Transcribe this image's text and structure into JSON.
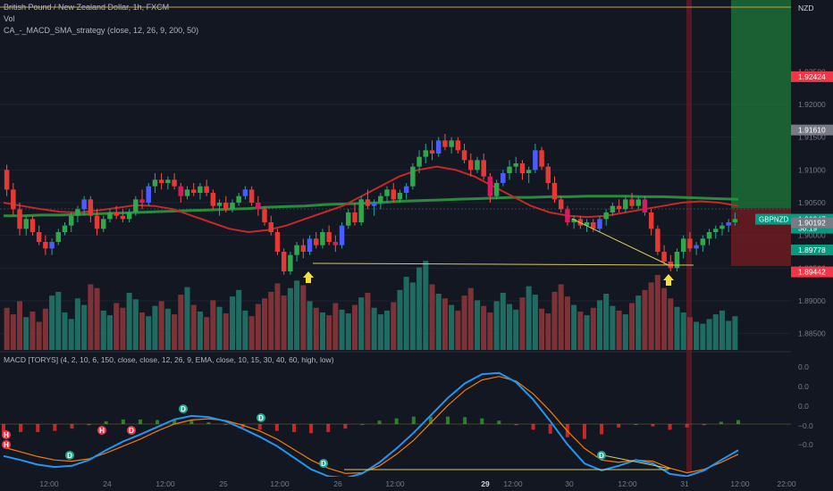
{
  "header": {
    "symbol_title": "British Pound / New Zealand Dollar, 1h, FXCM",
    "vol_label": "Vol",
    "strategy_label": "CA_-_MACD_SMA_strategy (close, 12, 26, 9, 200, 50)"
  },
  "macd_legend": "MACD [TORYS] (4, 2, 10, 6, 150, close, close, 12, 26, 9, EMA, close, 10, 15, 30, 40, 60, high, low)",
  "price_axis": {
    "currency": "NZD",
    "ticks": [
      "1.92500",
      "1.92000",
      "1.91500",
      "1.91000",
      "1.90500",
      "1.90000",
      "1.89500",
      "1.89000",
      "1.88500"
    ],
    "badges": [
      {
        "value": "1.92424",
        "color": "#f23645"
      },
      {
        "value": "1.91610",
        "color": "#787b86"
      },
      {
        "value": "1.90247",
        "color": "#089981"
      },
      {
        "value": "38:19",
        "color": "#089981"
      },
      {
        "value": "1.90192",
        "color": "#787b86"
      },
      {
        "value": "1.89778",
        "color": "#089981"
      },
      {
        "value": "1.89442",
        "color": "#f23645"
      }
    ],
    "symbol_badge": "GBPNZD"
  },
  "macd_axis": {
    "ticks": [
      "0.0",
      "0.0",
      "0.0",
      "−0.0",
      "−0.0"
    ]
  },
  "time_axis": {
    "labels": [
      "12:00",
      "24",
      "12:00",
      "25",
      "12:00",
      "26",
      "12:00",
      "29",
      "12:00",
      "30",
      "12:00",
      "31",
      "12:00",
      "22:00"
    ]
  },
  "signals": [
    {
      "text": "H",
      "color": "#f23645"
    },
    {
      "text": "H",
      "color": "#f23645"
    },
    {
      "text": "H",
      "color": "#f23645"
    },
    {
      "text": "D",
      "color": "#f23645"
    },
    {
      "text": "D",
      "color": "#22ab94"
    },
    {
      "text": "D",
      "color": "#22ab94"
    },
    {
      "text": "D",
      "color": "#22ab94"
    },
    {
      "text": "D",
      "color": "#22ab94"
    },
    {
      "text": "D",
      "color": "#22ab94"
    }
  ],
  "chart_data": {
    "type": "candlestick",
    "ylim": [
      1.8825,
      1.9305
    ],
    "candles": [
      [
        1.91,
        1.9108,
        1.906,
        1.907
      ],
      [
        1.907,
        1.908,
        1.903,
        1.904
      ],
      [
        1.904,
        1.905,
        1.9,
        1.901
      ],
      [
        1.901,
        1.903,
        1.9,
        1.9025
      ],
      [
        1.9025,
        1.903,
        1.9,
        1.9005
      ],
      [
        1.9005,
        1.9015,
        1.8985,
        1.899
      ],
      [
        1.899,
        1.9,
        1.897,
        1.898
      ],
      [
        1.898,
        1.8995,
        1.897,
        1.899
      ],
      [
        1.899,
        1.901,
        1.8985,
        1.9005
      ],
      [
        1.9005,
        1.902,
        1.9,
        1.9015
      ],
      [
        1.9015,
        1.9035,
        1.9005,
        1.903
      ],
      [
        1.903,
        1.9045,
        1.902,
        1.904
      ],
      [
        1.904,
        1.906,
        1.903,
        1.9055
      ],
      [
        1.9055,
        1.906,
        1.902,
        1.903
      ],
      [
        1.903,
        1.904,
        1.9,
        1.901
      ],
      [
        1.901,
        1.903,
        1.9005,
        1.9025
      ],
      [
        1.9025,
        1.904,
        1.902,
        1.9035
      ],
      [
        1.9035,
        1.9045,
        1.9025,
        1.903
      ],
      [
        1.903,
        1.904,
        1.902,
        1.9025
      ],
      [
        1.9025,
        1.904,
        1.902,
        1.9035
      ],
      [
        1.9035,
        1.906,
        1.903,
        1.9055
      ],
      [
        1.9055,
        1.907,
        1.904,
        1.905
      ],
      [
        1.905,
        1.908,
        1.9045,
        1.9075
      ],
      [
        1.9075,
        1.9095,
        1.9065,
        1.9085
      ],
      [
        1.9085,
        1.9095,
        1.907,
        1.908
      ],
      [
        1.908,
        1.909,
        1.907,
        1.9085
      ],
      [
        1.9085,
        1.9095,
        1.907,
        1.9075
      ],
      [
        1.9075,
        1.908,
        1.905,
        1.906
      ],
      [
        1.906,
        1.9075,
        1.9055,
        1.907
      ],
      [
        1.907,
        1.908,
        1.906,
        1.9065
      ],
      [
        1.9065,
        1.908,
        1.9055,
        1.9075
      ],
      [
        1.9075,
        1.9085,
        1.906,
        1.9065
      ],
      [
        1.9065,
        1.907,
        1.904,
        1.9045
      ],
      [
        1.9045,
        1.9055,
        1.903,
        1.905
      ],
      [
        1.905,
        1.906,
        1.9035,
        1.904
      ],
      [
        1.904,
        1.9055,
        1.9035,
        1.905
      ],
      [
        1.905,
        1.9065,
        1.9045,
        1.906
      ],
      [
        1.906,
        1.9075,
        1.9055,
        1.907
      ],
      [
        1.907,
        1.9075,
        1.9045,
        1.905
      ],
      [
        1.905,
        1.906,
        1.903,
        1.904
      ],
      [
        1.904,
        1.9045,
        1.9015,
        1.902
      ],
      [
        1.902,
        1.903,
        1.9,
        1.9005
      ],
      [
        1.9005,
        1.901,
        1.897,
        1.8975
      ],
      [
        1.8975,
        1.898,
        1.894,
        1.8945
      ],
      [
        1.8945,
        1.8975,
        1.894,
        1.897
      ],
      [
        1.897,
        1.899,
        1.896,
        1.8985
      ],
      [
        1.8985,
        1.8995,
        1.8965,
        1.8975
      ],
      [
        1.8975,
        1.9,
        1.897,
        1.8995
      ],
      [
        1.8995,
        1.9005,
        1.898,
        1.8985
      ],
      [
        1.8985,
        1.901,
        1.898,
        1.9005
      ],
      [
        1.9005,
        1.9015,
        1.8985,
        1.899
      ],
      [
        1.899,
        1.9,
        1.8975,
        1.8985
      ],
      [
        1.8985,
        1.902,
        1.898,
        1.9015
      ],
      [
        1.9015,
        1.904,
        1.901,
        1.9035
      ],
      [
        1.9035,
        1.905,
        1.9015,
        1.902
      ],
      [
        1.902,
        1.906,
        1.9015,
        1.9055
      ],
      [
        1.9055,
        1.907,
        1.904,
        1.9045
      ],
      [
        1.9045,
        1.9055,
        1.903,
        1.905
      ],
      [
        1.905,
        1.9065,
        1.904,
        1.906
      ],
      [
        1.906,
        1.9075,
        1.905,
        1.907
      ],
      [
        1.907,
        1.908,
        1.905,
        1.9055
      ],
      [
        1.9055,
        1.907,
        1.905,
        1.9065
      ],
      [
        1.9065,
        1.908,
        1.9055,
        1.9075
      ],
      [
        1.9075,
        1.911,
        1.907,
        1.9105
      ],
      [
        1.9105,
        1.913,
        1.9095,
        1.912
      ],
      [
        1.912,
        1.914,
        1.911,
        1.913
      ],
      [
        1.913,
        1.9145,
        1.9115,
        1.9125
      ],
      [
        1.9125,
        1.915,
        1.912,
        1.9145
      ],
      [
        1.9145,
        1.9155,
        1.913,
        1.9135
      ],
      [
        1.9135,
        1.915,
        1.9125,
        1.9145
      ],
      [
        1.9145,
        1.915,
        1.9125,
        1.913
      ],
      [
        1.913,
        1.914,
        1.911,
        1.9115
      ],
      [
        1.9115,
        1.9125,
        1.909,
        1.91
      ],
      [
        1.91,
        1.912,
        1.9095,
        1.9115
      ],
      [
        1.9115,
        1.9125,
        1.9085,
        1.909
      ],
      [
        1.909,
        1.9095,
        1.905,
        1.906
      ],
      [
        1.906,
        1.9085,
        1.9055,
        1.908
      ],
      [
        1.908,
        1.91,
        1.9075,
        1.9095
      ],
      [
        1.9095,
        1.9115,
        1.9085,
        1.9105
      ],
      [
        1.9105,
        1.912,
        1.9095,
        1.911
      ],
      [
        1.911,
        1.9115,
        1.9085,
        1.9095
      ],
      [
        1.9095,
        1.9105,
        1.908,
        1.91
      ],
      [
        1.91,
        1.914,
        1.9095,
        1.913
      ],
      [
        1.913,
        1.9135,
        1.91,
        1.9105
      ],
      [
        1.9105,
        1.911,
        1.907,
        1.908
      ],
      [
        1.908,
        1.909,
        1.905,
        1.9055
      ],
      [
        1.9055,
        1.906,
        1.9035,
        1.904
      ],
      [
        1.904,
        1.9045,
        1.9015,
        1.902
      ],
      [
        1.902,
        1.903,
        1.901,
        1.9025
      ],
      [
        1.9025,
        1.903,
        1.901,
        1.9015
      ],
      [
        1.9015,
        1.9025,
        1.9005,
        1.902
      ],
      [
        1.902,
        1.9025,
        1.9005,
        1.901
      ],
      [
        1.901,
        1.903,
        1.9005,
        1.9025
      ],
      [
        1.9025,
        1.904,
        1.9015,
        1.9035
      ],
      [
        1.9035,
        1.905,
        1.903,
        1.9045
      ],
      [
        1.9045,
        1.9055,
        1.9035,
        1.904
      ],
      [
        1.904,
        1.906,
        1.9035,
        1.9055
      ],
      [
        1.9055,
        1.9065,
        1.904,
        1.9045
      ],
      [
        1.9045,
        1.906,
        1.904,
        1.9055
      ],
      [
        1.9055,
        1.906,
        1.903,
        1.9035
      ],
      [
        1.9035,
        1.904,
        1.9,
        1.901
      ],
      [
        1.901,
        1.9015,
        1.897,
        1.8975
      ],
      [
        1.8975,
        1.8985,
        1.8955,
        1.896
      ],
      [
        1.896,
        1.897,
        1.8945,
        1.895
      ],
      [
        1.895,
        1.898,
        1.8945,
        1.8975
      ],
      [
        1.8975,
        1.9,
        1.8965,
        1.8995
      ],
      [
        1.8995,
        1.9005,
        1.8975,
        1.898
      ],
      [
        1.898,
        1.899,
        1.897,
        1.8985
      ],
      [
        1.8985,
        1.9,
        1.8975,
        1.8995
      ],
      [
        1.8995,
        1.901,
        1.8985,
        1.9005
      ],
      [
        1.9005,
        1.9015,
        1.8995,
        1.901
      ],
      [
        1.901,
        1.902,
        1.9,
        1.9015
      ],
      [
        1.9015,
        1.9025,
        1.9005,
        1.902
      ],
      [
        1.902,
        1.9035,
        1.9015,
        1.9025
      ]
    ],
    "sma_200": [
      1.903,
      1.903,
      1.9031,
      1.9031,
      1.9032,
      1.9033,
      1.9034,
      1.9035,
      1.9036,
      1.9037,
      1.9038,
      1.9039,
      1.904,
      1.9041,
      1.9043,
      1.9044,
      1.9045,
      1.9047,
      1.9048,
      1.9049,
      1.905,
      1.9052,
      1.9053,
      1.9054,
      1.9055,
      1.9056,
      1.9057,
      1.9058,
      1.9058,
      1.9059,
      1.9059,
      1.906,
      1.906,
      1.906,
      1.9059,
      1.9059,
      1.9058,
      1.9057,
      1.9056,
      1.9055
    ],
    "sma_50": [
      1.905,
      1.9045,
      1.904,
      1.9036,
      1.9035,
      1.9038,
      1.9042,
      1.9046,
      1.9045,
      1.904,
      1.903,
      1.902,
      1.901,
      1.9005,
      1.9008,
      1.9015,
      1.9025,
      1.9035,
      1.9045,
      1.906,
      1.9075,
      1.909,
      1.91,
      1.9105,
      1.91,
      1.909,
      1.9075,
      1.906,
      1.9045,
      1.9035,
      1.903,
      1.9028,
      1.903,
      1.9035,
      1.904,
      1.9045,
      1.905,
      1.9052,
      1.905,
      1.9045
    ],
    "volume": [
      45,
      38,
      52,
      35,
      41,
      30,
      44,
      58,
      62,
      40,
      33,
      55,
      48,
      70,
      66,
      42,
      37,
      50,
      45,
      61,
      54,
      40,
      36,
      47,
      52,
      44,
      38,
      59,
      67,
      48,
      41,
      35,
      53,
      46,
      39,
      57,
      64,
      42,
      36,
      49,
      55,
      62,
      71,
      58,
      66,
      74,
      69,
      52,
      45,
      40,
      37,
      50,
      43,
      39,
      48,
      56,
      61,
      45,
      38,
      42,
      51,
      64,
      78,
      72,
      88,
      95,
      70,
      60,
      55,
      48,
      42,
      58,
      66,
      53,
      47,
      40,
      52,
      61,
      49,
      43,
      56,
      68,
      59,
      44,
      39,
      62,
      70,
      57,
      48,
      41,
      37,
      45,
      53,
      60,
      47,
      42,
      38,
      50,
      58,
      64,
      72,
      80,
      66,
      55,
      46,
      40,
      35,
      30,
      28,
      33,
      38,
      42,
      31,
      36
    ],
    "volume_max": 100,
    "macd_ylim": [
      -1.0,
      1.0
    ],
    "macd_line": [
      -0.55,
      -0.62,
      -0.7,
      -0.74,
      -0.72,
      -0.62,
      -0.45,
      -0.3,
      -0.18,
      -0.05,
      0.08,
      0.14,
      0.12,
      0.05,
      -0.08,
      -0.22,
      -0.38,
      -0.58,
      -0.78,
      -0.9,
      -0.93,
      -0.85,
      -0.66,
      -0.42,
      -0.15,
      0.15,
      0.45,
      0.7,
      0.86,
      0.88,
      0.72,
      0.42,
      0.05,
      -0.35,
      -0.68,
      -0.8,
      -0.72,
      -0.62,
      -0.68,
      -0.86,
      -0.9,
      -0.8,
      -0.62,
      -0.45
    ],
    "signal_line": [
      -0.4,
      -0.48,
      -0.56,
      -0.62,
      -0.64,
      -0.6,
      -0.5,
      -0.38,
      -0.26,
      -0.12,
      0.0,
      0.07,
      0.09,
      0.06,
      -0.02,
      -0.12,
      -0.26,
      -0.44,
      -0.62,
      -0.76,
      -0.85,
      -0.84,
      -0.72,
      -0.52,
      -0.28,
      0.02,
      0.32,
      0.58,
      0.76,
      0.82,
      0.74,
      0.52,
      0.22,
      -0.12,
      -0.42,
      -0.62,
      -0.66,
      -0.62,
      -0.64,
      -0.76,
      -0.84,
      -0.78,
      -0.66,
      -0.52
    ]
  }
}
